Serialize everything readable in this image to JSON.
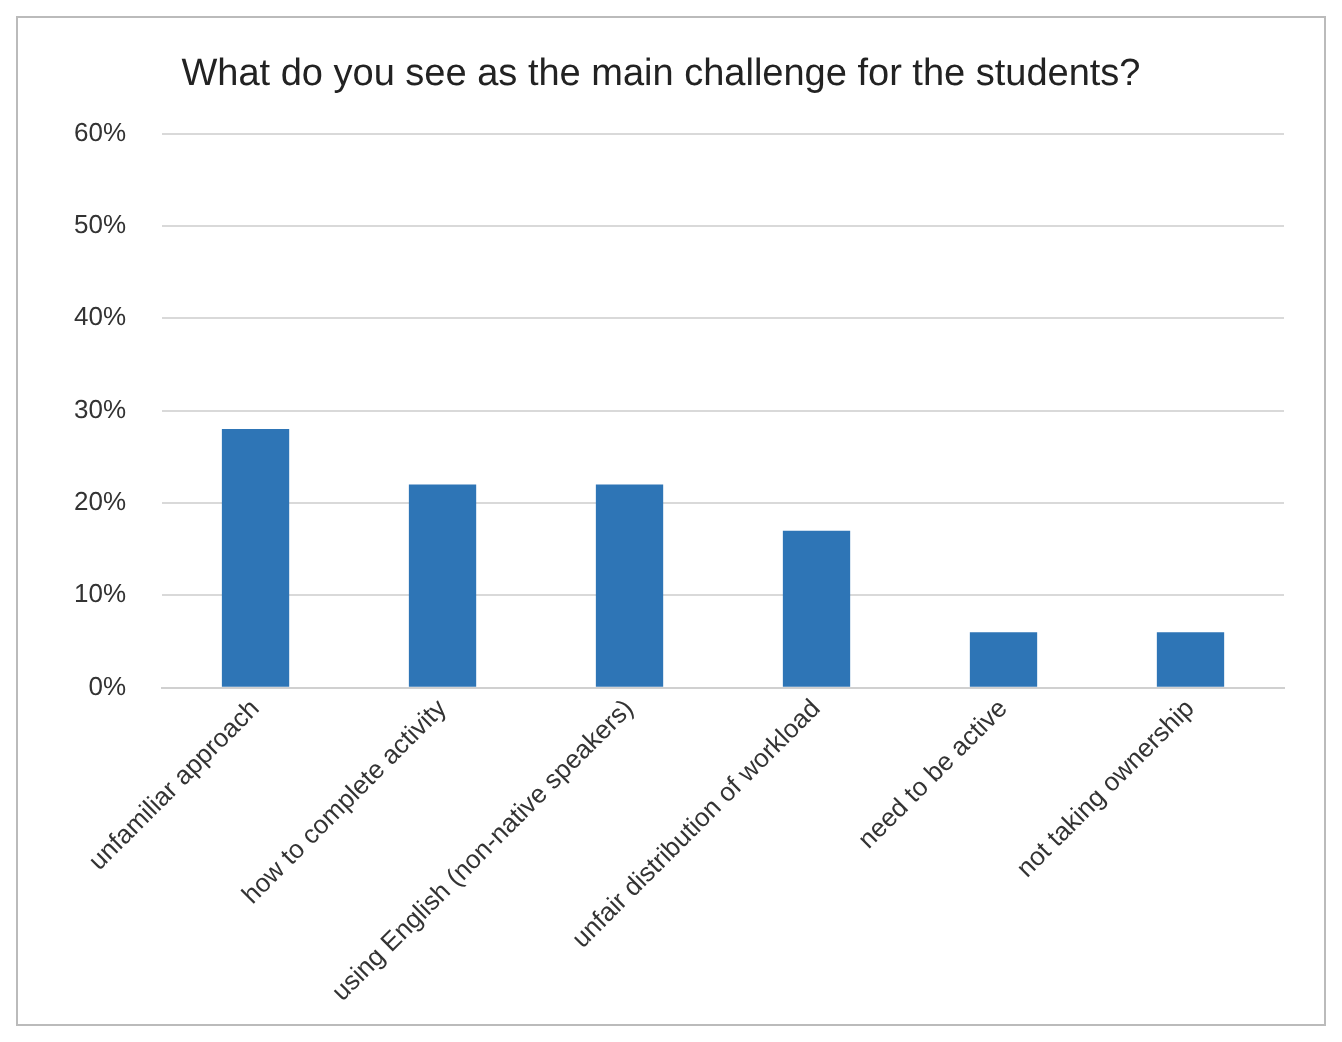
{
  "chart_data": {
    "type": "bar",
    "title": "What do you see as the main challenge for the students?",
    "categories": [
      "unfamiliar approach",
      "how to complete activity",
      "using English (non-native speakers)",
      "unfair distribution of workload",
      "need to be active",
      "not taking ownership"
    ],
    "values": [
      28,
      22,
      22,
      17,
      6,
      6
    ],
    "color": "#2e75b6",
    "ylim": [
      0,
      60
    ],
    "yticks": [
      {
        "value": 0,
        "label": "0%"
      },
      {
        "value": 10,
        "label": "10%"
      },
      {
        "value": 20,
        "label": "20%"
      },
      {
        "value": 30,
        "label": "30%"
      },
      {
        "value": 40,
        "label": "40%"
      },
      {
        "value": 50,
        "label": "50%"
      },
      {
        "value": 60,
        "label": "60%"
      }
    ],
    "grid": "y",
    "legend": false
  }
}
